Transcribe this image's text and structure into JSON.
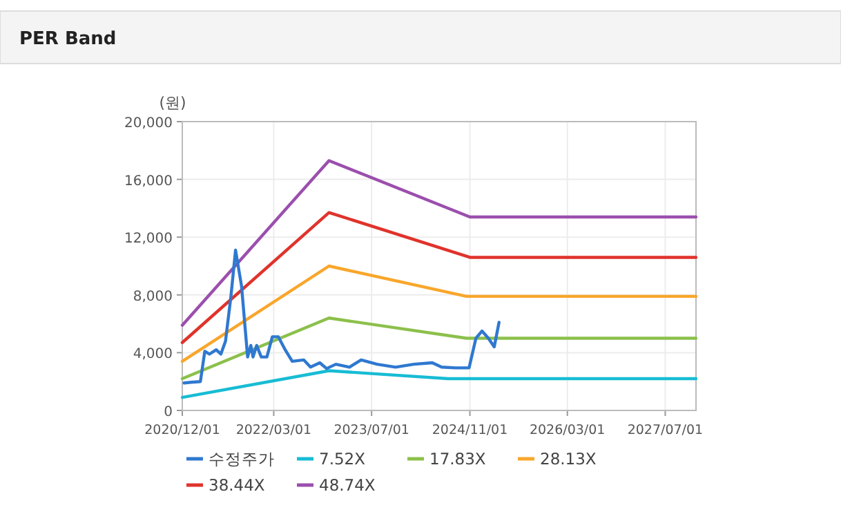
{
  "chart_data": {
    "type": "line",
    "title": "PER Band",
    "ylabel": "(원)",
    "xlim": [
      "2020-12-01",
      "2027-12-01"
    ],
    "xticks": [
      {
        "value": "2020-12-01",
        "label": "2020/12/01"
      },
      {
        "value": "2022-03-01",
        "label": "2022/03/01"
      },
      {
        "value": "2023-07-01",
        "label": "2023/07/01"
      },
      {
        "value": "2024-11-01",
        "label": "2024/11/01"
      },
      {
        "value": "2026-03-01",
        "label": "2026/03/01"
      },
      {
        "value": "2027-07-01",
        "label": "2027/07/01"
      }
    ],
    "ylim": [
      0,
      20000
    ],
    "yticks": [
      0,
      {
        "value": 4000,
        "label": "4,000"
      },
      {
        "value": 8000,
        "label": "8,000"
      },
      {
        "value": 12000,
        "label": "12,000"
      },
      {
        "value": 16000,
        "label": "16,000"
      },
      {
        "value": 20000,
        "label": "20,000"
      }
    ],
    "grid": true,
    "legend": "bottom",
    "marker": "none",
    "line_style": "solid",
    "series": [
      {
        "name": "수정주가",
        "color": "#2f78d0",
        "x": [
          "2020-12-10",
          "2021-01-13",
          "2021-03-01",
          "2021-03-23",
          "2021-04-15",
          "2021-05-19",
          "2021-06-11",
          "2021-07-04",
          "2021-07-31",
          "2021-08-23",
          "2021-09-22",
          "2021-10-22",
          "2021-11-07",
          "2021-11-18",
          "2021-12-06",
          "2021-12-29",
          "2022-01-26",
          "2022-02-22",
          "2022-03-24",
          "2022-04-27",
          "2022-06-01",
          "2022-07-28",
          "2022-08-31",
          "2022-10-16",
          "2022-11-19",
          "2023-01-04",
          "2023-03-13",
          "2023-05-10",
          "2023-07-28",
          "2023-10-28",
          "2024-01-27",
          "2024-04-28",
          "2024-06-13",
          "2024-08-20",
          "2024-10-28",
          "2024-12-01",
          "2024-12-31",
          "2025-02-01",
          "2025-03-02",
          "2025-03-26"
        ],
        "values": [
          1900,
          1950,
          2000,
          4100,
          3900,
          4200,
          3900,
          4800,
          7900,
          11100,
          8600,
          3700,
          4500,
          3700,
          4500,
          3700,
          3700,
          5100,
          5100,
          4200,
          3400,
          3500,
          3000,
          3300,
          2900,
          3200,
          3000,
          3500,
          3200,
          3000,
          3200,
          3300,
          3000,
          2950,
          2950,
          5000,
          5500,
          5000,
          4400,
          6100
        ]
      },
      {
        "name": "7.52X",
        "color": "#17bcd4",
        "x": [
          "2020-12-01",
          "2022-12-01",
          "2024-07-15",
          "2027-12-01"
        ],
        "values": [
          900,
          2750,
          2200,
          2200
        ]
      },
      {
        "name": "17.83X",
        "color": "#8cc04b",
        "x": [
          "2020-12-01",
          "2022-12-01",
          "2024-10-15",
          "2027-12-01"
        ],
        "values": [
          2200,
          6400,
          5000,
          5000
        ]
      },
      {
        "name": "28.13X",
        "color": "#f9a62b",
        "x": [
          "2020-12-01",
          "2022-12-01",
          "2024-10-15",
          "2027-12-01"
        ],
        "values": [
          3400,
          10000,
          7900,
          7900
        ]
      },
      {
        "name": "38.44X",
        "color": "#e0332b",
        "x": [
          "2020-12-01",
          "2022-12-01",
          "2024-11-01",
          "2027-12-01"
        ],
        "values": [
          4700,
          13700,
          10600,
          10600
        ]
      },
      {
        "name": "48.74X",
        "color": "#9b4fae",
        "x": [
          "2020-12-01",
          "2022-12-01",
          "2024-11-01",
          "2027-12-01"
        ],
        "values": [
          5900,
          17300,
          13400,
          13400
        ]
      }
    ]
  }
}
